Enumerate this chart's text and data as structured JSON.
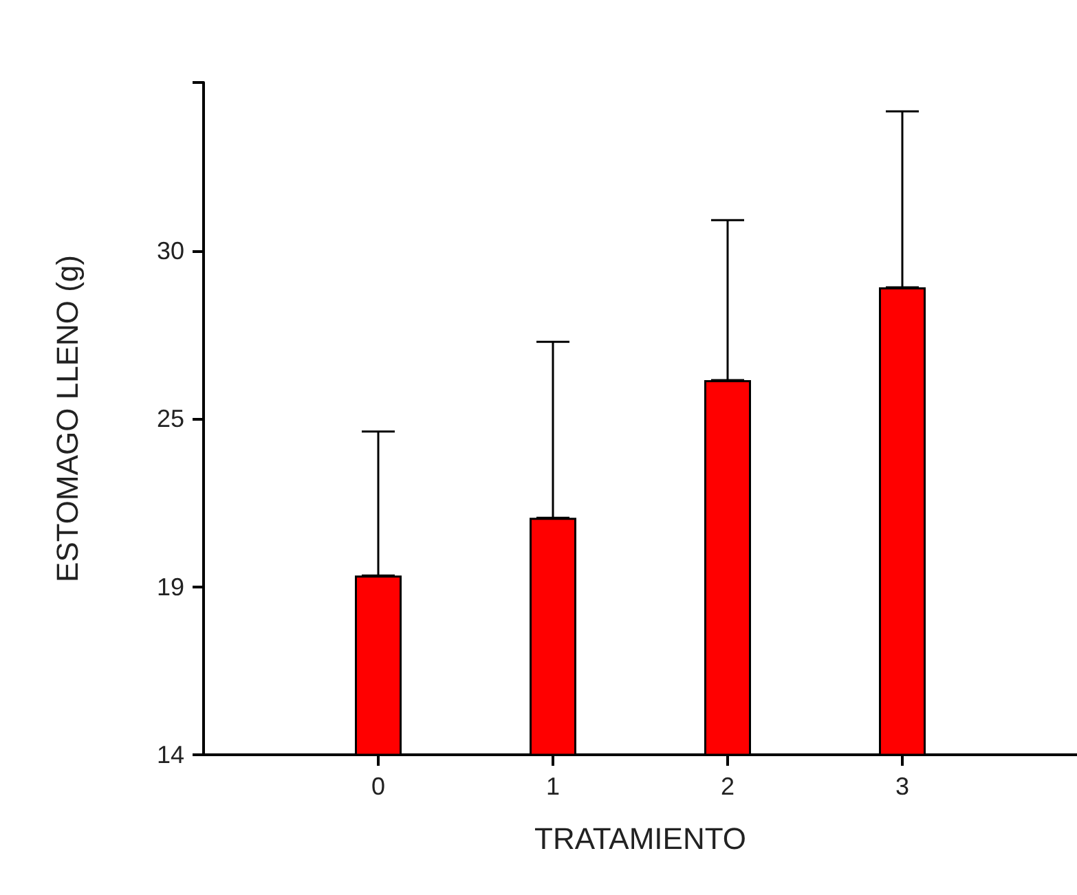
{
  "chart_data": {
    "type": "bar",
    "xlabel": "TRATAMIENTO",
    "ylabel": "ESTOMAGO LLENO (g)",
    "x": [
      0,
      1,
      2,
      3
    ],
    "values": [
      19.6,
      21.4,
      25.7,
      28.6
    ],
    "color": "#ff0000",
    "errors": [
      [
        19.6,
        24.1
      ],
      [
        21.4,
        26.9
      ],
      [
        25.7,
        30.7
      ],
      [
        28.6,
        34.1
      ]
    ],
    "xlim": [
      -1,
      4
    ],
    "xticks": [
      0,
      1,
      2,
      3
    ],
    "ylim": [
      14,
      35
    ],
    "yticks": [
      {
        "value": 14,
        "label": "14"
      },
      {
        "value": 19.25,
        "label": "19"
      },
      {
        "value": 24.5,
        "label": "25"
      },
      {
        "value": 29.75,
        "label": "30"
      },
      {
        "value": 35,
        "label": null
      }
    ],
    "grid": false
  }
}
